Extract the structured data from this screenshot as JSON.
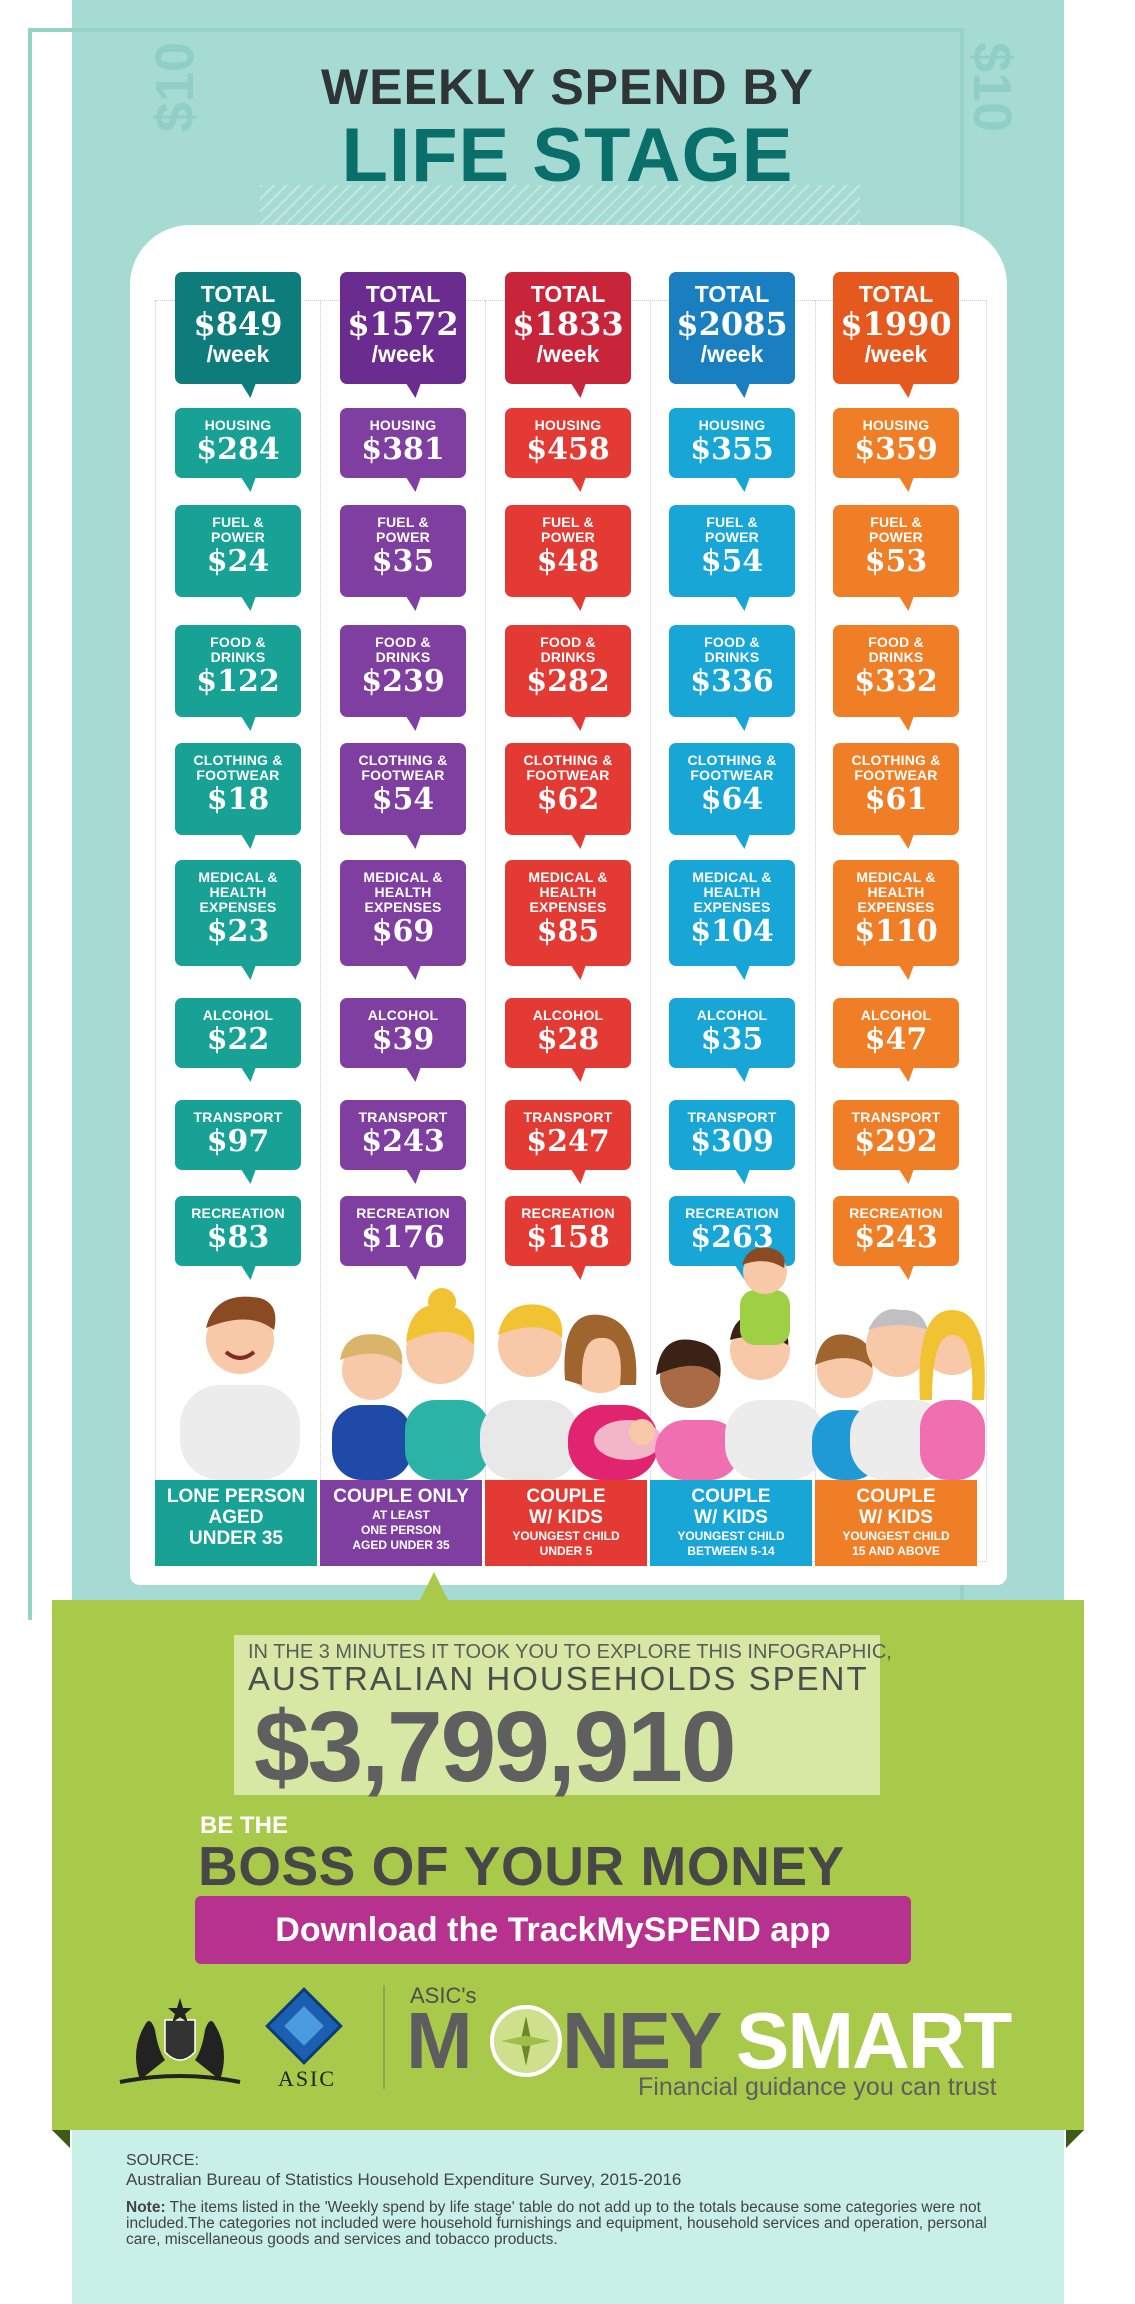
{
  "title": {
    "line1": "WEEKLY SPEND BY",
    "line2": "LIFE STAGE"
  },
  "decor": {
    "left_note": "$10",
    "right_note": "$10"
  },
  "columns": [
    {
      "total": "$849",
      "housing": "$284",
      "fuel": "$24",
      "food": "$122",
      "clothing": "$18",
      "medical": "$23",
      "alcohol": "$22",
      "transport": "$97",
      "recreation": "$83",
      "stage_l1": "LONE PERSON",
      "stage_l2": "AGED",
      "stage_l3": "UNDER 35",
      "color": "#17a295",
      "total_color": "#0d7c7a"
    },
    {
      "total": "$1572",
      "housing": "$381",
      "fuel": "$35",
      "food": "$239",
      "clothing": "$54",
      "medical": "$69",
      "alcohol": "$39",
      "transport": "$243",
      "recreation": "$176",
      "stage_l1": "COUPLE ONLY",
      "stage_l2": "AT LEAST",
      "stage_l3": "ONE PERSON",
      "stage_l4": "AGED UNDER 35",
      "color": "#7f3fa0",
      "total_color": "#6a2c8f"
    },
    {
      "total": "$1833",
      "housing": "$458",
      "fuel": "$48",
      "food": "$282",
      "clothing": "$62",
      "medical": "$85",
      "alcohol": "$28",
      "transport": "$247",
      "recreation": "$158",
      "stage_l1": "COUPLE",
      "stage_l2": "W/ KIDS",
      "stage_l3": "YOUNGEST CHILD",
      "stage_l4": "UNDER 5",
      "color": "#e43a34",
      "total_color": "#c8253a"
    },
    {
      "total": "$2085",
      "housing": "$355",
      "fuel": "$54",
      "food": "$336",
      "clothing": "$64",
      "medical": "$104",
      "alcohol": "$35",
      "transport": "$309",
      "recreation": "$263",
      "stage_l1": "COUPLE",
      "stage_l2": "W/ KIDS",
      "stage_l3": "YOUNGEST CHILD",
      "stage_l4": "BETWEEN 5-14",
      "color": "#18a6d6",
      "total_color": "#1a7fc0"
    },
    {
      "total": "$1990",
      "housing": "$359",
      "fuel": "$53",
      "food": "$332",
      "clothing": "$61",
      "medical": "$110",
      "alcohol": "$47",
      "transport": "$292",
      "recreation": "$243",
      "stage_l1": "COUPLE",
      "stage_l2": "W/ KIDS",
      "stage_l3": "YOUNGEST CHILD",
      "stage_l4": "15 AND ABOVE",
      "color": "#f07e26",
      "total_color": "#e5581e"
    }
  ],
  "labels": {
    "total": "TOTAL",
    "per_week": "/week",
    "housing": "HOUSING",
    "fuel_1": "FUEL &",
    "fuel_2": "POWER",
    "food_1": "FOOD &",
    "food_2": "DRINKS",
    "clothing_1": "CLOTHING &",
    "clothing_2": "FOOTWEAR",
    "medical_1": "MEDICAL &",
    "medical_2": "HEALTH",
    "medical_3": "EXPENSES",
    "alcohol": "ALCOHOL",
    "transport": "TRANSPORT",
    "recreation": "RECREATION"
  },
  "spent": {
    "line1": "IN THE 3 MINUTES IT TOOK YOU TO EXPLORE THIS INFOGRAPHIC,",
    "line2": "AUSTRALIAN HOUSEHOLDS SPENT",
    "amount": "$3,799,910"
  },
  "cta": {
    "be_the": "BE THE",
    "boss": "BOSS OF YOUR MONEY",
    "download": "Download the TrackMySPEND app"
  },
  "logos": {
    "asic": "ASIC",
    "moneysmart_pre": "ASIC's",
    "money_m": "M",
    "money_ney": "NEY",
    "smart": "SMART",
    "tagline": "Financial guidance you can trust"
  },
  "source": {
    "heading": "SOURCE:",
    "text": "Australian Bureau of Statistics Household Expenditure Survey, 2015-2016",
    "note_label": "Note:",
    "note": "The items listed in the 'Weekly spend by life stage' table do not add up to the totals because some categories were not included.The categories not included were household furnishings and equipment, household services and operation, personal care, miscellaneous goods and services and tobacco products."
  }
}
